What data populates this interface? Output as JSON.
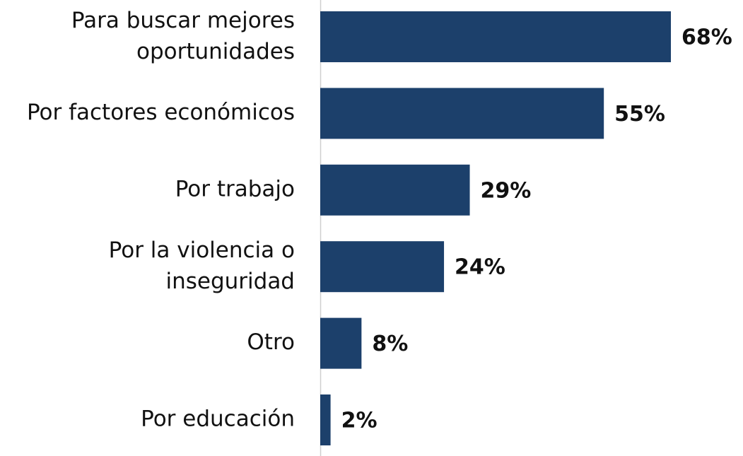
{
  "chart_data": {
    "type": "bar",
    "orientation": "horizontal",
    "categories": [
      "Para buscar mejores oportunidades",
      "Por factores económicos",
      "Por trabajo",
      "Por la violencia o inseguridad",
      "Otro",
      "Por educación"
    ],
    "values": [
      68,
      55,
      29,
      24,
      8,
      2
    ],
    "value_labels": [
      "68%",
      "55%",
      "29%",
      "24%",
      "8%",
      "2%"
    ],
    "color": "#1c406b"
  }
}
